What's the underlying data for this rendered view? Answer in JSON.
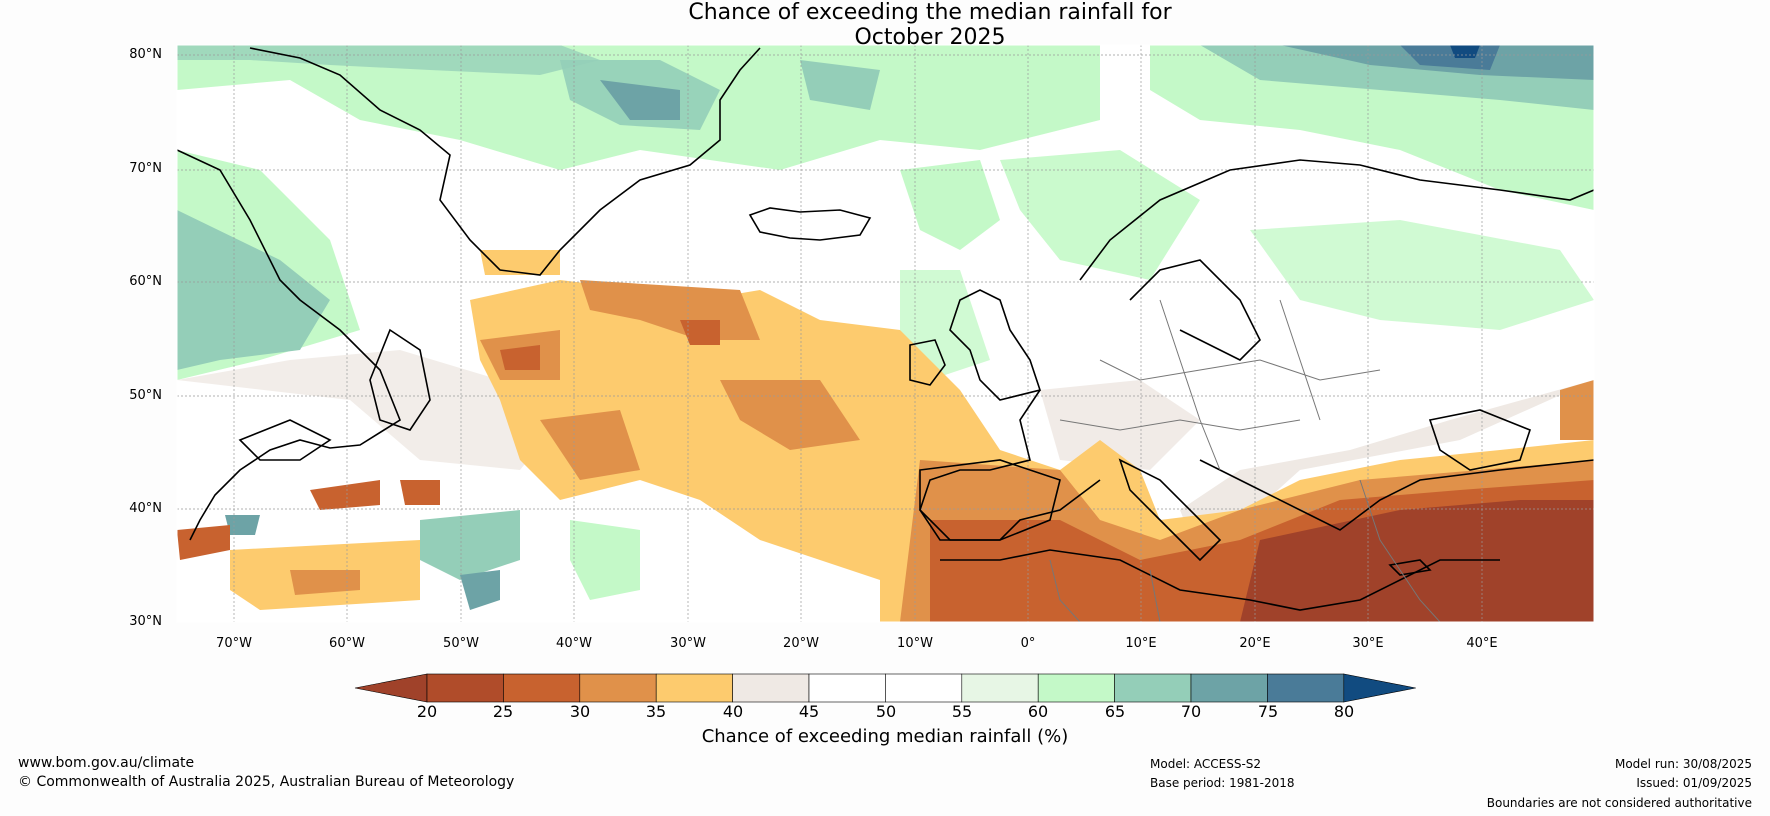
{
  "title": {
    "line1": "Chance of exceeding the median rainfall for",
    "line2": "October 2025"
  },
  "map": {
    "lat_labels": [
      "80°N",
      "70°N",
      "60°N",
      "50°N",
      "40°N",
      "30°N"
    ],
    "lon_labels": [
      "70°W",
      "60°W",
      "50°W",
      "40°W",
      "30°W",
      "20°W",
      "10°W",
      "0°",
      "10°E",
      "20°E",
      "30°E",
      "40°E"
    ],
    "lat_range": [
      30,
      81
    ],
    "lon_range": [
      -75,
      50
    ]
  },
  "colorbar": {
    "ticks": [
      "20",
      "25",
      "30",
      "35",
      "40",
      "45",
      "50",
      "55",
      "60",
      "65",
      "70",
      "75",
      "80"
    ],
    "colors": [
      "#a0422a",
      "#b04c2a",
      "#c8622f",
      "#e0914a",
      "#fdcb6e",
      "#efe9e4",
      "#ffffff",
      "#ffffff",
      "#e7f6e5",
      "#c4f9c8",
      "#94ceb8",
      "#6da3a6",
      "#4a7b98",
      "#114b80"
    ],
    "label": "Chance of exceeding median rainfall (%)"
  },
  "footer": {
    "site": "www.bom.gov.au/climate",
    "copyright": "© Commonwealth of Australia 2025, Australian Bureau of Meteorology",
    "model": "Model: ACCESS-S2",
    "base_period": "Base period: 1981-2018",
    "model_run": "Model run: 30/08/2025",
    "issued": "Issued: 01/09/2025",
    "disclaimer": "Boundaries are not considered authoritative"
  }
}
